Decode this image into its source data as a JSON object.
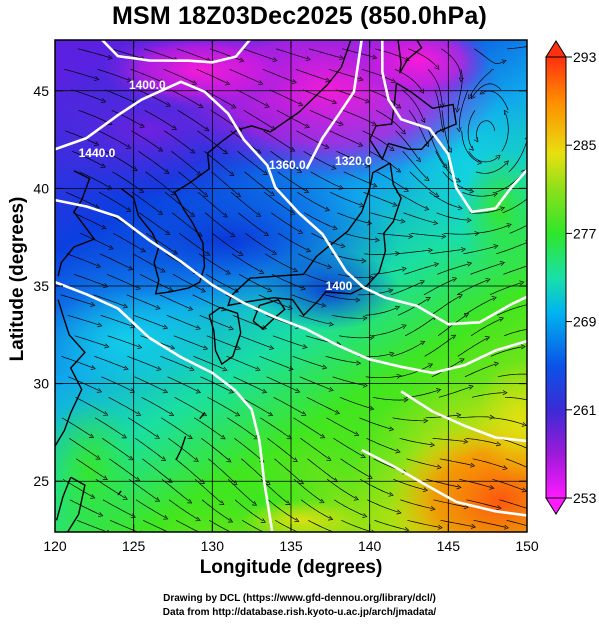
{
  "title": "MSM 18Z03Dec2025 (850.0hPa)",
  "xlabel": "Longitude (degrees)",
  "ylabel": "Latitude  (degrees)",
  "footer_line1": "Drawing by DCL (https://www.gfd-dennou.org/library/dcl/)",
  "footer_line2": "Data from http://database.rish.kyoto-u.ac.jp/arch/jmadata/",
  "map": {
    "lon_range": [
      120,
      150
    ],
    "lat_range": [
      22.4,
      47.6
    ],
    "lon_ticks": [
      120,
      125,
      130,
      135,
      140,
      145,
      150
    ],
    "lat_ticks": [
      25,
      30,
      35,
      40,
      45
    ],
    "grid_lon": [
      125,
      130,
      135,
      140,
      145
    ],
    "grid_lat": [
      25,
      30,
      35,
      40,
      45
    ],
    "field": "temperature (K), shaded",
    "contour_field": "geopotential height (m)",
    "contour_labels": [
      {
        "text": "1400.0",
        "lon": 124.7,
        "lat": 45.1
      },
      {
        "text": "1440.0",
        "lon": 121.5,
        "lat": 41.6
      },
      {
        "text": "1360.0",
        "lon": 133.6,
        "lat": 41.0
      },
      {
        "text": "1320.0",
        "lon": 137.8,
        "lat": 41.2
      },
      {
        "text": "1400",
        "lon": 137.2,
        "lat": 34.8
      }
    ]
  },
  "colorbar": {
    "min": 253,
    "max": 293,
    "ticks": [
      253,
      261,
      269,
      277,
      285,
      293
    ],
    "tick_labels": [
      "253",
      "261",
      "269",
      "277",
      "285",
      "293"
    ],
    "colors": [
      "#ff1aff",
      "#9c1ad8",
      "#3a2bd6",
      "#0b53e8",
      "#00b4f0",
      "#1ae0a8",
      "#2fe62a",
      "#8ce01a",
      "#e8e010",
      "#ff8c00",
      "#ff3010"
    ]
  }
}
